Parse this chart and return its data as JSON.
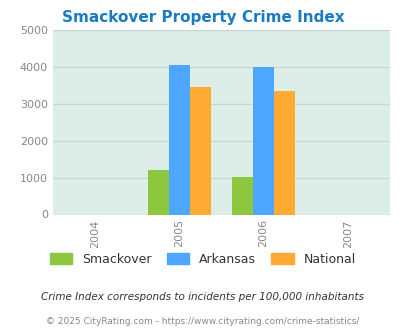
{
  "title": "Smackover Property Crime Index",
  "title_color": "#1a7bc4",
  "years": [
    2004,
    2005,
    2006,
    2007
  ],
  "bar_groups": {
    "2005": {
      "Smackover": 1200,
      "Arkansas": 4050,
      "National": 3450
    },
    "2006": {
      "Smackover": 1020,
      "Arkansas": 3980,
      "National": 3340
    }
  },
  "series_colors": {
    "Smackover": "#8dc63f",
    "Arkansas": "#4da6ff",
    "National": "#ffaa33"
  },
  "ylim": [
    0,
    5000
  ],
  "yticks": [
    0,
    1000,
    2000,
    3000,
    4000,
    5000
  ],
  "plot_bg_color": "#ddeee8",
  "grid_color": "#c0d8d0",
  "legend_labels": [
    "Smackover",
    "Arkansas",
    "National"
  ],
  "footnote1": "Crime Index corresponds to incidents per 100,000 inhabitants",
  "footnote2": "© 2025 CityRating.com - https://www.cityrating.com/crime-statistics/",
  "bar_width": 0.25,
  "xlim": [
    2003.5,
    2007.5
  ]
}
